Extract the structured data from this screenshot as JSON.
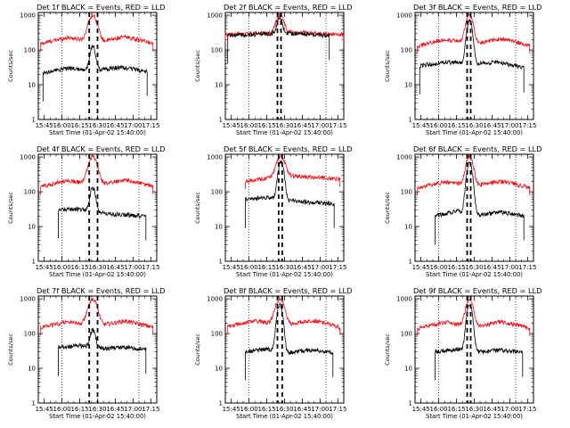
{
  "colors": {
    "events": "#000000",
    "lld": "#e8161c",
    "axes": "#000000",
    "background": "#ffffff"
  },
  "chart_data": [
    {
      "type": "line",
      "title": "Det 1f BLACK = Events, RED = LLD",
      "xlabel": "Start Time (01-Apr-02 15:40:00)",
      "ylabel": "Counts/sec",
      "yscale": "log",
      "ylim": [
        1,
        1200
      ],
      "x_ticks": [
        "15:45",
        "16:00",
        "16:15",
        "16:30",
        "16:45",
        "17:00",
        "17:15"
      ],
      "y_ticks": [
        "1",
        "10",
        "100",
        "1000"
      ],
      "xlim_minutes": [
        0,
        100
      ],
      "dotted_lines_minutes": [
        20,
        85
      ],
      "dashed_lines_minutes": [
        43,
        50
      ],
      "series": [
        {
          "name": "LLD",
          "color": "#e8161c",
          "start": 2,
          "end": 97,
          "base": [
            150,
            230,
            160,
            240,
            150
          ],
          "peak": 1000,
          "peak_center": 46,
          "peak_width": 5
        },
        {
          "name": "Events",
          "color": "#000000",
          "start": 4,
          "end": 92,
          "base": [
            22,
            30,
            26,
            32,
            24
          ],
          "peak": 130,
          "peak_center": 46,
          "peak_width": 3
        }
      ]
    },
    {
      "type": "line",
      "title": "Det 2f BLACK = Events, RED = LLD",
      "xlabel": "Start Time (01-Apr-02 15:40:00)",
      "ylabel": "Counts/sec",
      "yscale": "log",
      "ylim": [
        1,
        1200
      ],
      "x_ticks": [
        "15:45",
        "16:00",
        "16:15",
        "16:30",
        "16:45",
        "17:00",
        "17:15"
      ],
      "y_ticks": [
        "1",
        "10",
        "100",
        "1000"
      ],
      "xlim_minutes": [
        0,
        100
      ],
      "dotted_lines_minutes": [
        20,
        85
      ],
      "dashed_lines_minutes": [
        44,
        47
      ],
      "series": [
        {
          "name": "LLD",
          "color": "#e8161c",
          "start": 0,
          "end": 100,
          "base": [
            280,
            300,
            330,
            300,
            280
          ],
          "peak": 1100,
          "peak_center": 46,
          "peak_width": 4
        },
        {
          "name": "Events",
          "color": "#000000",
          "start": 2,
          "end": 88,
          "base": [
            270,
            280,
            300,
            290,
            260
          ],
          "peak": 900,
          "peak_center": 46,
          "peak_width": 3
        }
      ]
    },
    {
      "type": "line",
      "title": "Det 3f BLACK = Events, RED = LLD",
      "xlabel": "Start Time (01-Apr-02 15:40:00)",
      "ylabel": "Counts/sec",
      "yscale": "log",
      "ylim": [
        1,
        1200
      ],
      "x_ticks": [
        "15:45",
        "16:00",
        "16:15",
        "16:30",
        "16:45",
        "17:00",
        "17:15"
      ],
      "y_ticks": [
        "1",
        "10",
        "100",
        "1000"
      ],
      "xlim_minutes": [
        0,
        100
      ],
      "dotted_lines_minutes": [
        20,
        85
      ],
      "dashed_lines_minutes": [
        44,
        47
      ],
      "series": [
        {
          "name": "LLD",
          "color": "#e8161c",
          "start": 2,
          "end": 97,
          "base": [
            130,
            200,
            150,
            210,
            130
          ],
          "peak": 1000,
          "peak_center": 46,
          "peak_width": 4
        },
        {
          "name": "Events",
          "color": "#000000",
          "start": 4,
          "end": 92,
          "base": [
            35,
            45,
            40,
            45,
            30
          ],
          "peak": 700,
          "peak_center": 46,
          "peak_width": 3
        }
      ]
    },
    {
      "type": "line",
      "title": "Det 4f BLACK = Events, RED = LLD",
      "xlabel": "Start Time (01-Apr-02 15:40:00)",
      "ylabel": "Counts/sec",
      "yscale": "log",
      "ylim": [
        1,
        1200
      ],
      "x_ticks": [
        "15:45",
        "16:00",
        "16:15",
        "16:30",
        "16:45",
        "17:00",
        "17:15"
      ],
      "y_ticks": [
        "1",
        "10",
        "100",
        "1000"
      ],
      "xlim_minutes": [
        0,
        100
      ],
      "dotted_lines_minutes": [
        20,
        85
      ],
      "dashed_lines_minutes": [
        43,
        50
      ],
      "series": [
        {
          "name": "LLD",
          "color": "#e8161c",
          "start": 2,
          "end": 97,
          "base": [
            140,
            210,
            150,
            220,
            140
          ],
          "peak": 1000,
          "peak_center": 46,
          "peak_width": 5
        },
        {
          "name": "Events",
          "color": "#000000",
          "start": 17,
          "end": 91,
          "base": [
            30,
            32,
            24,
            22,
            20
          ],
          "peak": 130,
          "peak_center": 46,
          "peak_width": 3
        }
      ]
    },
    {
      "type": "line",
      "title": "Det 5f BLACK = Events, RED = LLD",
      "xlabel": "Start Time (01-Apr-02 15:40:00)",
      "ylabel": "Counts/sec",
      "yscale": "log",
      "ylim": [
        1,
        1200
      ],
      "x_ticks": [
        "15:45",
        "16:00",
        "16:15",
        "16:30",
        "16:45",
        "17:00",
        "17:15"
      ],
      "y_ticks": [
        "1",
        "10",
        "100",
        "1000"
      ],
      "xlim_minutes": [
        0,
        100
      ],
      "dotted_lines_minutes": [
        20,
        85
      ],
      "dashed_lines_minutes": [
        45,
        48
      ],
      "series": [
        {
          "name": "LLD",
          "color": "#e8161c",
          "start": 17,
          "end": 97,
          "base": [
            200,
            250,
            280,
            260,
            230
          ],
          "peak": 1000,
          "peak_center": 47,
          "peak_width": 5
        },
        {
          "name": "Events",
          "color": "#000000",
          "start": 17,
          "end": 92,
          "base": [
            60,
            70,
            55,
            50,
            45
          ],
          "peak": 750,
          "peak_center": 47,
          "peak_width": 3
        }
      ]
    },
    {
      "type": "line",
      "title": "Det 6f BLACK = Events, RED = LLD",
      "xlabel": "Start Time (01-Apr-02 15:40:00)",
      "ylabel": "Counts/sec",
      "yscale": "log",
      "ylim": [
        1,
        1200
      ],
      "x_ticks": [
        "15:45",
        "16:00",
        "16:15",
        "16:30",
        "16:45",
        "17:00",
        "17:15"
      ],
      "y_ticks": [
        "1",
        "10",
        "100",
        "1000"
      ],
      "xlim_minutes": [
        0,
        100
      ],
      "dotted_lines_minutes": [
        20,
        85
      ],
      "dashed_lines_minutes": [
        44,
        47
      ],
      "series": [
        {
          "name": "LLD",
          "color": "#e8161c",
          "start": 2,
          "end": 97,
          "base": [
            130,
            190,
            150,
            200,
            130
          ],
          "peak": 1000,
          "peak_center": 46,
          "peak_width": 4
        },
        {
          "name": "Events",
          "color": "#000000",
          "start": 17,
          "end": 92,
          "base": [
            20,
            28,
            22,
            26,
            20
          ],
          "peak": 700,
          "peak_center": 46,
          "peak_width": 3
        }
      ]
    },
    {
      "type": "line",
      "title": "Det 7f BLACK = Events, RED = LLD",
      "xlabel": "Start Time (01-Apr-02 15:40:00)",
      "ylabel": "Counts/sec",
      "yscale": "log",
      "ylim": [
        1,
        1200
      ],
      "x_ticks": [
        "15:45",
        "16:00",
        "16:15",
        "16:30",
        "16:45",
        "17:00",
        "17:15"
      ],
      "y_ticks": [
        "1",
        "10",
        "100",
        "1000"
      ],
      "xlim_minutes": [
        0,
        100
      ],
      "dotted_lines_minutes": [
        20,
        85
      ],
      "dashed_lines_minutes": [
        43,
        50
      ],
      "series": [
        {
          "name": "LLD",
          "color": "#e8161c",
          "start": 2,
          "end": 97,
          "base": [
            150,
            220,
            160,
            230,
            150
          ],
          "peak": 1000,
          "peak_center": 46,
          "peak_width": 5
        },
        {
          "name": "Events",
          "color": "#000000",
          "start": 17,
          "end": 91,
          "base": [
            40,
            45,
            38,
            40,
            35
          ],
          "peak": 130,
          "peak_center": 46,
          "peak_width": 3
        }
      ]
    },
    {
      "type": "line",
      "title": "Det 8f BLACK = Events, RED = LLD",
      "xlabel": "Start Time (01-Apr-02 15:40:00)",
      "ylabel": "Counts/sec",
      "yscale": "log",
      "ylim": [
        1,
        1200
      ],
      "x_ticks": [
        "15:45",
        "16:00",
        "16:15",
        "16:30",
        "16:45",
        "17:00",
        "17:15"
      ],
      "y_ticks": [
        "1",
        "10",
        "100",
        "1000"
      ],
      "xlim_minutes": [
        0,
        100
      ],
      "dotted_lines_minutes": [
        20,
        85
      ],
      "dashed_lines_minutes": [
        44,
        48
      ],
      "series": [
        {
          "name": "LLD",
          "color": "#e8161c",
          "start": 2,
          "end": 97,
          "base": [
            160,
            230,
            170,
            240,
            150
          ],
          "peak": 1000,
          "peak_center": 46,
          "peak_width": 5
        },
        {
          "name": "Events",
          "color": "#000000",
          "start": 17,
          "end": 91,
          "base": [
            30,
            36,
            28,
            34,
            28
          ],
          "peak": 700,
          "peak_center": 46,
          "peak_width": 3
        }
      ]
    },
    {
      "type": "line",
      "title": "Det 9f BLACK = Events, RED = LLD",
      "xlabel": "Start Time (01-Apr-02 15:40:00)",
      "ylabel": "Counts/sec",
      "yscale": "log",
      "ylim": [
        1,
        1200
      ],
      "x_ticks": [
        "15:45",
        "16:00",
        "16:15",
        "16:30",
        "16:45",
        "17:00",
        "17:15"
      ],
      "y_ticks": [
        "1",
        "10",
        "100",
        "1000"
      ],
      "xlim_minutes": [
        0,
        100
      ],
      "dotted_lines_minutes": [
        20,
        85
      ],
      "dashed_lines_minutes": [
        44,
        47
      ],
      "series": [
        {
          "name": "LLD",
          "color": "#e8161c",
          "start": 2,
          "end": 97,
          "base": [
            140,
            210,
            150,
            220,
            140
          ],
          "peak": 1000,
          "peak_center": 46,
          "peak_width": 4
        },
        {
          "name": "Events",
          "color": "#000000",
          "start": 17,
          "end": 91,
          "base": [
            30,
            36,
            30,
            34,
            28
          ],
          "peak": 700,
          "peak_center": 46,
          "peak_width": 3
        }
      ]
    }
  ]
}
